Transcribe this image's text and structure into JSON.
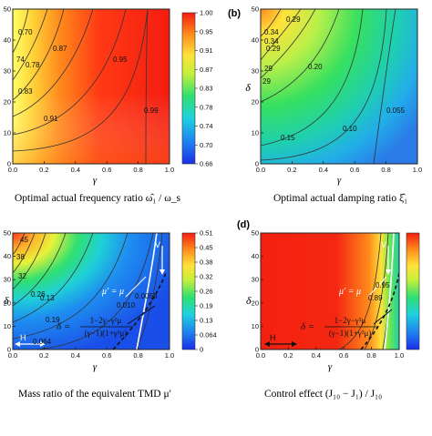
{
  "chart_data": [
    {
      "type": "heatmap",
      "panel_label": "",
      "caption": "Optimal actual frequency ratio  ω̂₁ / ω_s",
      "xlabel": "γ",
      "ylabel": "",
      "xlim": [
        0.0,
        1.0
      ],
      "ylim": [
        0,
        50
      ],
      "x_ticks": [
        "0.0",
        "0.2",
        "0.4",
        "0.6",
        "0.8",
        "1.0"
      ],
      "y_ticks": [
        "0",
        "10",
        "20",
        "30",
        "40",
        "50"
      ],
      "colorbar_ticks": [
        "0.66",
        "0.70",
        "0.74",
        "0.78",
        "0.83",
        "0.87",
        "0.91",
        "0.95",
        "1.00"
      ],
      "colorbar_range": [
        0.66,
        1.0
      ],
      "contour_labels": [
        "0.70",
        "74",
        "0.78",
        "0.83",
        "0.87",
        "0.91",
        "0.95",
        "0.99"
      ]
    },
    {
      "type": "heatmap",
      "panel_label": "(b)",
      "caption": "Optimal actual damping ratio  ξ̂₁",
      "xlabel": "γ",
      "ylabel": "δ",
      "xlim": [
        0.0,
        1.0
      ],
      "ylim": [
        0,
        50
      ],
      "x_ticks": [
        "0.0",
        "0.2",
        "0.4",
        "0.6",
        "0.8",
        "1.0"
      ],
      "y_ticks": [
        "0",
        "10",
        "20",
        "30",
        "40",
        "50"
      ],
      "contour_labels": [
        "0.29",
        "0.34",
        "0.34",
        "0.29",
        "29",
        "29",
        "0.20",
        "0.15",
        "0.10",
        "0.055"
      ]
    },
    {
      "type": "heatmap",
      "panel_label": "",
      "caption": "Mass ratio of the equivalent TMD  μ′",
      "xlabel": "γ",
      "ylabel": "δ",
      "xlim": [
        0.0,
        1.0
      ],
      "ylim": [
        0,
        50
      ],
      "x_ticks": [
        "0.0",
        "0.2",
        "0.4",
        "0.6",
        "0.8",
        "1.0"
      ],
      "y_ticks": [
        "0",
        "10",
        "20",
        "30",
        "40",
        "50"
      ],
      "colorbar_ticks": [
        "0",
        "0.064",
        "0.13",
        "0.19",
        "0.26",
        "0.32",
        "0.38",
        "0.45",
        "0.51"
      ],
      "colorbar_range": [
        0,
        0.51
      ],
      "contour_labels": [
        "45",
        "38",
        "32",
        "0.26",
        "0.19",
        "0.13",
        "0.064",
        "0.010",
        "0.0058"
      ],
      "annotations": [
        "μ′ = μ",
        "V",
        "H",
        "δ =",
        "1−2γ−γ²μ",
        "(γ−1)(1+γ²μ)"
      ]
    },
    {
      "type": "heatmap",
      "panel_label": "(d)",
      "caption": "Control effect  (J₁₀ − J₁) / J₁₀",
      "xlabel": "γ",
      "ylabel": "δ",
      "xlim": [
        0.0,
        1.0
      ],
      "ylim": [
        0,
        50
      ],
      "x_ticks": [
        "0.0",
        "0.2",
        "0.4",
        "0.6",
        "0.8",
        "1.0"
      ],
      "y_ticks": [
        "0",
        "10",
        "20",
        "30",
        "40",
        "50"
      ],
      "contour_labels": [
        "0.89",
        "0.95"
      ],
      "annotations": [
        "μ′ = μ",
        "V",
        "H",
        "δ =",
        "1−2γ−γ²μ",
        "(γ−1)(1+γ²μ)"
      ]
    }
  ]
}
